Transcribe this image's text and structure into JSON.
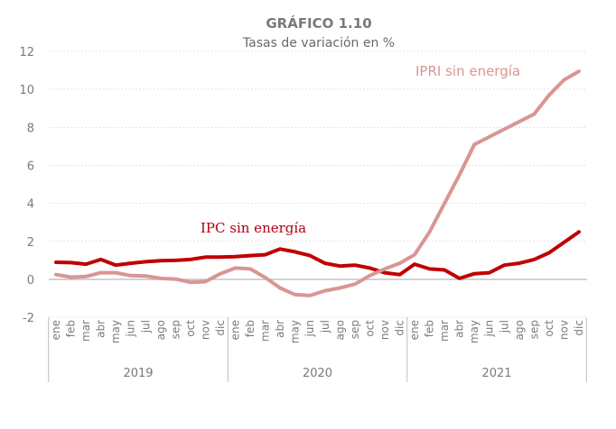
{
  "chart_data": {
    "type": "line",
    "title": "GRÁFICO 1.10",
    "subtitle": "Tasas de variación en %",
    "xlabel": "",
    "ylabel": "",
    "ylim": [
      -2,
      12
    ],
    "yticks": [
      -2,
      0,
      2,
      4,
      6,
      8,
      10,
      12
    ],
    "ytick_labels": [
      "-2",
      "0",
      "2",
      "4",
      "6",
      "8",
      "10",
      "12"
    ],
    "grid": true,
    "months": [
      "ene",
      "feb",
      "mar",
      "abr",
      "may",
      "jun",
      "jul",
      "ago",
      "sep",
      "oct",
      "nov",
      "dic"
    ],
    "years": [
      "2019",
      "2020",
      "2021"
    ],
    "x": [
      "ene",
      "feb",
      "mar",
      "abr",
      "may",
      "jun",
      "jul",
      "ago",
      "sep",
      "oct",
      "nov",
      "dic",
      "ene",
      "feb",
      "mar",
      "abr",
      "may",
      "jun",
      "jul",
      "ago",
      "sep",
      "oct",
      "nov",
      "dic",
      "ene",
      "feb",
      "mar",
      "abr",
      "may",
      "jun",
      "jul",
      "ago",
      "sep",
      "oct",
      "nov",
      "dic"
    ],
    "series": [
      {
        "name": "IPC sin energía",
        "color": "#c00000",
        "values": [
          0.9,
          0.88,
          0.8,
          1.05,
          0.75,
          0.85,
          0.93,
          0.98,
          1.0,
          1.05,
          1.17,
          1.17,
          1.2,
          1.25,
          1.3,
          1.6,
          1.45,
          1.25,
          0.85,
          0.7,
          0.75,
          0.6,
          0.35,
          0.25,
          0.8,
          0.55,
          0.5,
          0.05,
          0.3,
          0.35,
          0.75,
          0.85,
          1.05,
          1.4,
          1.95,
          2.5
        ]
      },
      {
        "name": "IPRI sin energía",
        "color": "#d99594",
        "values": [
          0.25,
          0.12,
          0.15,
          0.35,
          0.35,
          0.2,
          0.18,
          0.05,
          0.02,
          -0.15,
          -0.12,
          0.3,
          0.6,
          0.55,
          0.1,
          -0.45,
          -0.8,
          -0.85,
          -0.6,
          -0.45,
          -0.25,
          0.2,
          0.55,
          0.85,
          1.3,
          2.5,
          4.0,
          5.5,
          7.1,
          7.5,
          7.9,
          8.3,
          8.7,
          9.7,
          10.5,
          10.95
        ]
      }
    ],
    "annotations": [
      {
        "text": "IPC sin energía",
        "series": "IPC sin energía"
      },
      {
        "text": "IPRI sin energía",
        "series": "IPRI sin energía"
      }
    ],
    "legend": "none (inline labels)"
  }
}
